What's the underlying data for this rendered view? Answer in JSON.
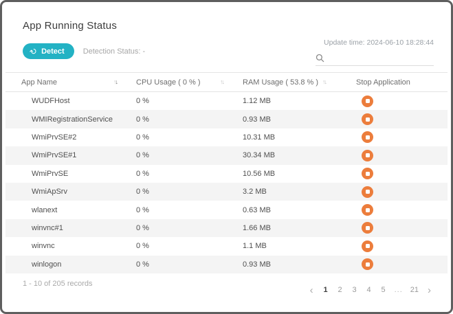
{
  "window": {
    "title": "App Running Status"
  },
  "toolbar": {
    "detect_label": "Detect",
    "detection_status": "Detection Status: -",
    "update_time": "Update time: 2024-06-10 18:28:44",
    "search_value": ""
  },
  "table": {
    "columns": [
      {
        "label": "App Name",
        "sortable": true
      },
      {
        "label": "CPU Usage ( 0 % )",
        "sortable": true
      },
      {
        "label": "RAM Usage ( 53.8 % )",
        "sortable": true
      },
      {
        "label": "Stop Application",
        "sortable": false
      }
    ],
    "sort": {
      "column": "App Name",
      "direction": "desc"
    },
    "rows": [
      {
        "app": "WUDFHost",
        "cpu": "0 %",
        "ram": "1.12 MB"
      },
      {
        "app": "WMIRegistrationService",
        "cpu": "0 %",
        "ram": "0.93 MB"
      },
      {
        "app": "WmiPrvSE#2",
        "cpu": "0 %",
        "ram": "10.31 MB"
      },
      {
        "app": "WmiPrvSE#1",
        "cpu": "0 %",
        "ram": "30.34 MB"
      },
      {
        "app": "WmiPrvSE",
        "cpu": "0 %",
        "ram": "10.56 MB"
      },
      {
        "app": "WmiApSrv",
        "cpu": "0 %",
        "ram": "3.2 MB"
      },
      {
        "app": "wlanext",
        "cpu": "0 %",
        "ram": "0.63 MB"
      },
      {
        "app": "winvnc#1",
        "cpu": "0 %",
        "ram": "1.66 MB"
      },
      {
        "app": "winvnc",
        "cpu": "0 %",
        "ram": "1.1 MB"
      },
      {
        "app": "winlogon",
        "cpu": "0 %",
        "ram": "0.93 MB"
      }
    ]
  },
  "footer": {
    "records_summary": "1 - 10 of 205 records",
    "pages": [
      "1",
      "2",
      "3",
      "4",
      "5",
      "...",
      "21"
    ],
    "active_page": "1",
    "prev_glyph": "‹",
    "next_glyph": "›"
  },
  "icons": {
    "detect_glyph": "↻"
  },
  "colors": {
    "accent_teal": "#23b2c4",
    "stop_orange": "#ec7d3c",
    "row_stripe": "#f4f4f4"
  }
}
